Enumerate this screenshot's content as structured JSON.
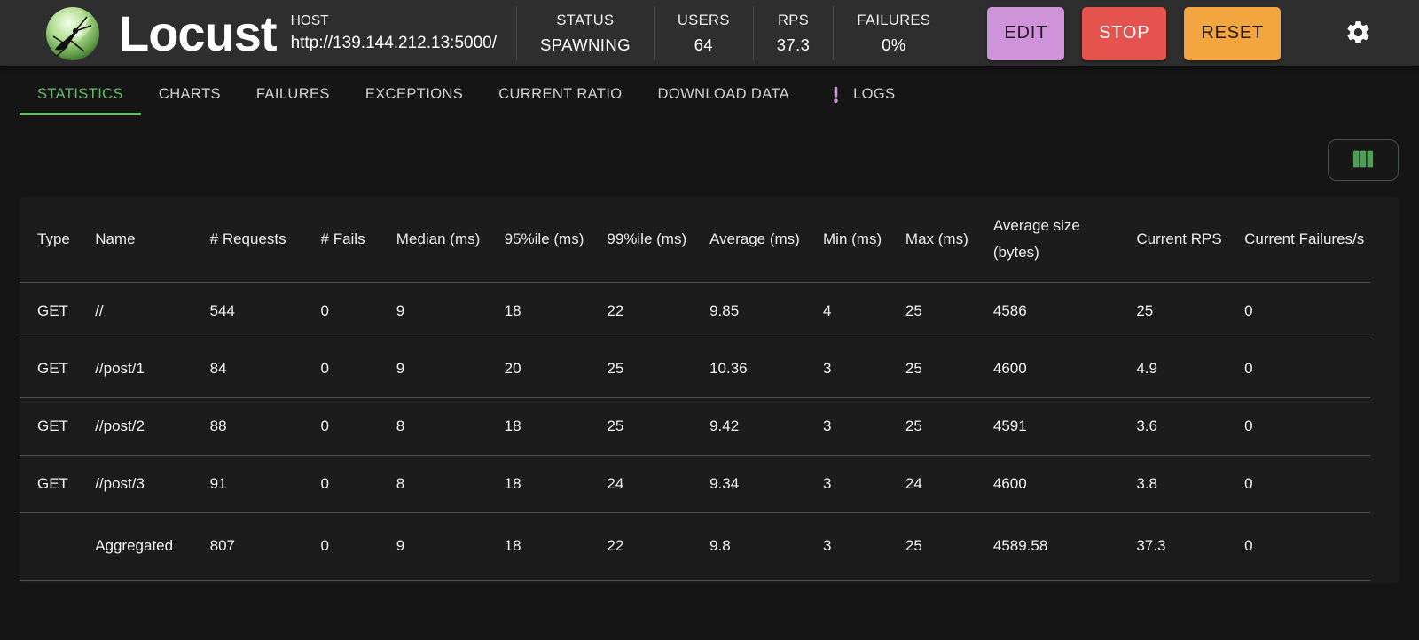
{
  "colors": {
    "accent_green": "#66bb6a",
    "table_border": "#515151",
    "appbar_bg": "#2e2e2e",
    "paper_bg": "#1c1c1c",
    "logs_icon_purple": "#ce93d8",
    "columns_icon_green": "#4f9e55"
  },
  "header": {
    "app_name": "Locust",
    "host": {
      "label": "HOST",
      "value": "http://139.144.212.13:5000/"
    },
    "stats": [
      {
        "label": "STATUS",
        "value": "SPAWNING"
      },
      {
        "label": "USERS",
        "value": "64"
      },
      {
        "label": "RPS",
        "value": "37.3"
      },
      {
        "label": "FAILURES",
        "value": "0%"
      }
    ],
    "actions": [
      {
        "label": "EDIT",
        "bg": "#ce93d8",
        "fg": "#241a29"
      },
      {
        "label": "STOP",
        "bg": "#e5534e",
        "fg": "#ffffff"
      },
      {
        "label": "RESET",
        "bg": "#f3a53f",
        "fg": "#231803"
      }
    ],
    "settings_icon": "gear-icon"
  },
  "tabs": [
    {
      "label": "STATISTICS",
      "active": true
    },
    {
      "label": "CHARTS"
    },
    {
      "label": "FAILURES"
    },
    {
      "label": "EXCEPTIONS"
    },
    {
      "label": "CURRENT RATIO"
    },
    {
      "label": "DOWNLOAD DATA"
    },
    {
      "label": "LOGS",
      "icon": "priority-high-icon"
    }
  ],
  "toolbar": {
    "column_selector_icon": "view-columns-icon"
  },
  "table": {
    "columns": [
      "Type",
      "Name",
      "# Requests",
      "# Fails",
      "Median (ms)",
      "95%ile (ms)",
      "99%ile (ms)",
      "Average (ms)",
      "Min (ms)",
      "Max (ms)",
      "Average size (bytes)",
      "Current RPS",
      "Current Failures/s"
    ],
    "rows": [
      {
        "cells": [
          "GET",
          "//",
          "544",
          "0",
          "9",
          "18",
          "22",
          "9.85",
          "4",
          "25",
          "4586",
          "25",
          "0"
        ]
      },
      {
        "cells": [
          "GET",
          "//post/1",
          "84",
          "0",
          "9",
          "20",
          "25",
          "10.36",
          "3",
          "25",
          "4600",
          "4.9",
          "0"
        ]
      },
      {
        "cells": [
          "GET",
          "//post/2",
          "88",
          "0",
          "8",
          "18",
          "25",
          "9.42",
          "3",
          "25",
          "4591",
          "3.6",
          "0"
        ]
      },
      {
        "cells": [
          "GET",
          "//post/3",
          "91",
          "0",
          "8",
          "18",
          "24",
          "9.34",
          "3",
          "24",
          "4600",
          "3.8",
          "0"
        ]
      },
      {
        "cells": [
          "",
          "Aggregated",
          "807",
          "0",
          "9",
          "18",
          "22",
          "9.8",
          "3",
          "25",
          "4589.58",
          "37.3",
          "0"
        ]
      }
    ]
  }
}
